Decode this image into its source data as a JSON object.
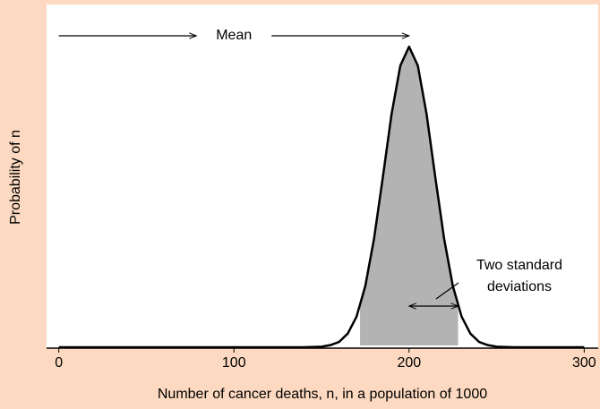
{
  "chart_data": {
    "type": "line",
    "x_label": "Number of cancer deaths, n, in a population of 1000",
    "y_label": "Probability of n",
    "x": [
      0,
      20,
      40,
      60,
      80,
      100,
      120,
      140,
      150,
      155,
      160,
      165,
      170,
      175,
      180,
      185,
      190,
      195,
      200,
      205,
      210,
      215,
      220,
      225,
      230,
      235,
      240,
      245,
      250,
      260,
      280,
      300
    ],
    "values": [
      0,
      0,
      0,
      0,
      0,
      0,
      0,
      0,
      5e-05,
      0.0002,
      0.0005,
      0.0013,
      0.0029,
      0.0058,
      0.0103,
      0.0161,
      0.0221,
      0.0267,
      0.0285,
      0.0267,
      0.0221,
      0.0161,
      0.0103,
      0.0058,
      0.0029,
      0.0013,
      0.0005,
      0.0002,
      5e-05,
      0,
      0,
      0
    ],
    "color": "#000000",
    "shade": {
      "range": [
        172,
        228
      ],
      "color": "#b3b3b3"
    },
    "xlim": [
      -7,
      308
    ],
    "ylim": [
      0,
      0.0325
    ],
    "xticks": [
      0,
      100,
      200,
      300
    ],
    "annotations": [
      {
        "text": "Mean",
        "x": [
          0,
          200
        ]
      },
      {
        "lines": [
          "Two standard",
          "deviations"
        ],
        "x": [
          200,
          228
        ]
      }
    ]
  }
}
